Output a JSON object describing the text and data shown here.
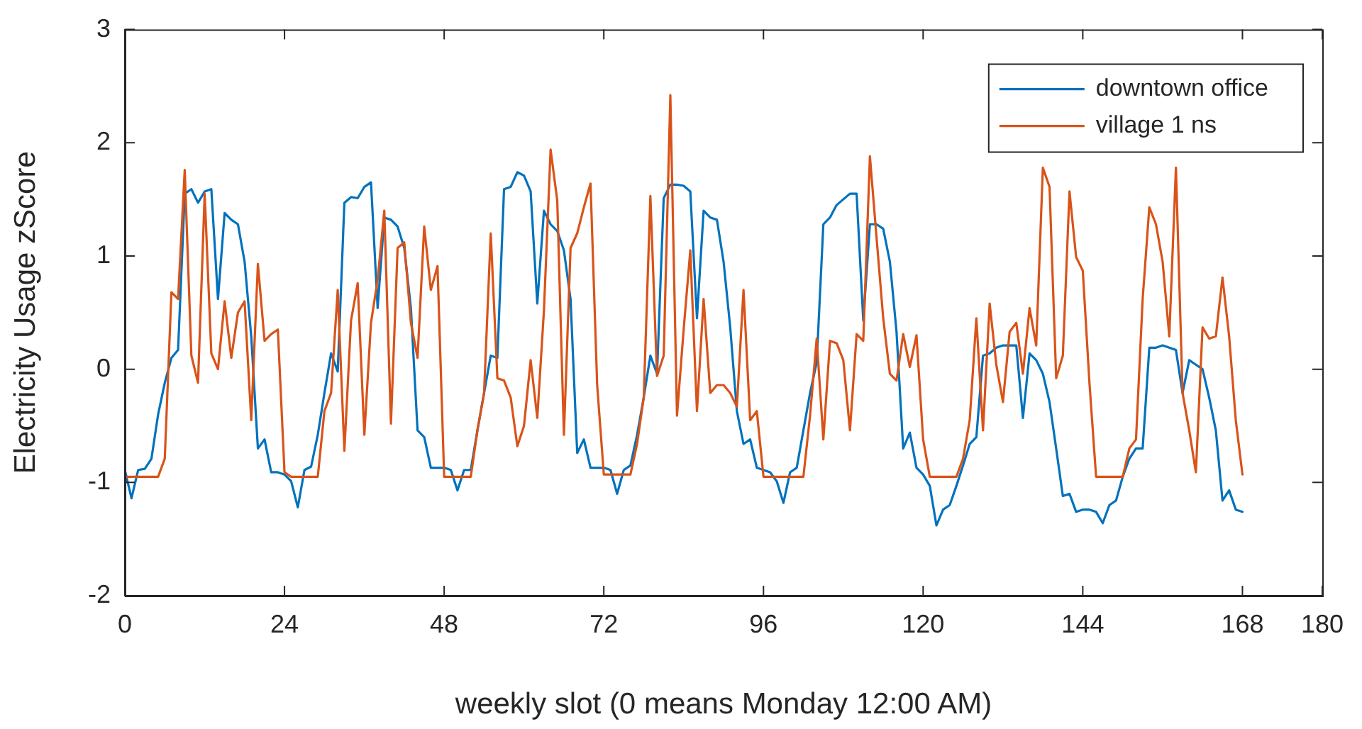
{
  "chart_data": {
    "type": "line",
    "xlabel": "weekly slot (0 means Monday 12:00 AM)",
    "ylabel": "Electricity Usage zScore",
    "x": [
      0,
      1,
      2,
      3,
      4,
      5,
      6,
      7,
      8,
      9,
      10,
      11,
      12,
      13,
      14,
      15,
      16,
      17,
      18,
      19,
      20,
      21,
      22,
      23,
      24,
      25,
      26,
      27,
      28,
      29,
      30,
      31,
      32,
      33,
      34,
      35,
      36,
      37,
      38,
      39,
      40,
      41,
      42,
      43,
      44,
      45,
      46,
      47,
      48,
      49,
      50,
      51,
      52,
      53,
      54,
      55,
      56,
      57,
      58,
      59,
      60,
      61,
      62,
      63,
      64,
      65,
      66,
      67,
      68,
      69,
      70,
      71,
      72,
      73,
      74,
      75,
      76,
      77,
      78,
      79,
      80,
      81,
      82,
      83,
      84,
      85,
      86,
      87,
      88,
      89,
      90,
      91,
      92,
      93,
      94,
      95,
      96,
      97,
      98,
      99,
      100,
      101,
      102,
      103,
      104,
      105,
      106,
      107,
      108,
      109,
      110,
      111,
      112,
      113,
      114,
      115,
      116,
      117,
      118,
      119,
      120,
      121,
      122,
      123,
      124,
      125,
      126,
      127,
      128,
      129,
      130,
      131,
      132,
      133,
      134,
      135,
      136,
      137,
      138,
      139,
      140,
      141,
      142,
      143,
      144,
      145,
      146,
      147,
      148,
      149,
      150,
      151,
      152,
      153,
      154,
      155,
      156,
      157,
      158,
      159,
      160,
      161,
      162,
      163,
      164,
      165,
      166,
      167,
      168
    ],
    "series": [
      {
        "name": "downtown office",
        "color": "#0072bd",
        "values": [
          -0.89,
          -1.14,
          -0.89,
          -0.88,
          -0.79,
          -0.4,
          -0.12,
          0.1,
          0.17,
          1.55,
          1.59,
          1.47,
          1.57,
          1.59,
          0.62,
          1.38,
          1.32,
          1.28,
          0.95,
          0.29,
          -0.7,
          -0.62,
          -0.91,
          -0.91,
          -0.93,
          -0.99,
          -1.22,
          -0.89,
          -0.86,
          -0.58,
          -0.21,
          0.14,
          -0.02,
          1.47,
          1.52,
          1.51,
          1.61,
          1.65,
          0.54,
          1.34,
          1.32,
          1.26,
          1.07,
          0.54,
          -0.54,
          -0.6,
          -0.87,
          -0.87,
          -0.87,
          -0.89,
          -1.07,
          -0.89,
          -0.89,
          -0.54,
          -0.21,
          0.12,
          0.1,
          1.59,
          1.61,
          1.74,
          1.71,
          1.57,
          0.58,
          1.4,
          1.28,
          1.22,
          1.05,
          0.62,
          -0.74,
          -0.62,
          -0.87,
          -0.87,
          -0.87,
          -0.89,
          -1.1,
          -0.89,
          -0.85,
          -0.58,
          -0.25,
          0.12,
          -0.04,
          1.51,
          1.63,
          1.63,
          1.62,
          1.57,
          0.45,
          1.4,
          1.34,
          1.32,
          0.95,
          0.37,
          -0.37,
          -0.66,
          -0.62,
          -0.87,
          -0.89,
          -0.91,
          -0.99,
          -1.18,
          -0.91,
          -0.87,
          -0.54,
          -0.21,
          0.06,
          1.28,
          1.34,
          1.45,
          1.5,
          1.55,
          1.55,
          0.43,
          1.28,
          1.28,
          1.24,
          0.95,
          0.33,
          -0.7,
          -0.56,
          -0.87,
          -0.93,
          -1.03,
          -1.38,
          -1.24,
          -1.2,
          -1.03,
          -0.85,
          -0.66,
          -0.6,
          0.12,
          0.14,
          0.19,
          0.21,
          0.21,
          0.21,
          -0.43,
          0.14,
          0.08,
          -0.04,
          -0.29,
          -0.7,
          -1.12,
          -1.1,
          -1.26,
          -1.24,
          -1.24,
          -1.26,
          -1.36,
          -1.2,
          -1.16,
          -0.95,
          -0.79,
          -0.7,
          -0.7,
          0.19,
          0.19,
          0.21,
          0.19,
          0.17,
          -0.21,
          0.08,
          0.04,
          0,
          -0.25,
          -0.54,
          -1.16,
          -1.07,
          -1.24,
          -1.26
        ]
      },
      {
        "name": "village 1 ns",
        "color": "#d95319",
        "values": [
          -0.95,
          -0.95,
          -0.95,
          -0.95,
          -0.95,
          -0.95,
          -0.79,
          0.68,
          0.62,
          1.76,
          0.12,
          -0.12,
          1.55,
          0.14,
          0,
          0.6,
          0.1,
          0.5,
          0.6,
          -0.45,
          0.93,
          0.25,
          0.31,
          0.35,
          -0.91,
          -0.95,
          -0.95,
          -0.95,
          -0.95,
          -0.95,
          -0.37,
          -0.21,
          0.7,
          -0.72,
          0.43,
          0.76,
          -0.58,
          0.41,
          0.79,
          1.4,
          -0.48,
          1.07,
          1.12,
          0.41,
          0.1,
          1.26,
          0.7,
          0.91,
          -0.95,
          -0.95,
          -0.95,
          -0.95,
          -0.95,
          -0.54,
          -0.21,
          1.2,
          -0.08,
          -0.1,
          -0.25,
          -0.68,
          -0.5,
          0.08,
          -0.43,
          0.52,
          1.94,
          1.49,
          -0.58,
          1.07,
          1.2,
          1.43,
          1.64,
          -0.14,
          -0.93,
          -0.93,
          -0.93,
          -0.93,
          -0.93,
          -0.66,
          -0.25,
          1.53,
          -0.06,
          0.12,
          2.42,
          -0.41,
          0.35,
          1.05,
          -0.37,
          0.62,
          -0.21,
          -0.14,
          -0.14,
          -0.21,
          -0.33,
          0.7,
          -0.45,
          -0.37,
          -0.95,
          -0.95,
          -0.95,
          -0.95,
          -0.95,
          -0.95,
          -0.95,
          -0.41,
          0.27,
          -0.62,
          0.25,
          0.23,
          0.08,
          -0.54,
          0.31,
          0.25,
          1.88,
          1.16,
          0.45,
          -0.04,
          -0.1,
          0.31,
          0.02,
          0.3,
          -0.62,
          -0.95,
          -0.95,
          -0.95,
          -0.95,
          -0.95,
          -0.79,
          -0.45,
          0.45,
          -0.54,
          0.58,
          0.04,
          -0.29,
          0.33,
          0.41,
          -0.04,
          0.54,
          0.21,
          1.78,
          1.61,
          -0.08,
          0.12,
          1.57,
          0.99,
          0.87,
          -0.12,
          -0.95,
          -0.95,
          -0.95,
          -0.95,
          -0.95,
          -0.7,
          -0.62,
          0.62,
          1.43,
          1.28,
          0.95,
          0.29,
          1.78,
          -0.21,
          -0.54,
          -0.91,
          0.37,
          0.27,
          0.29,
          0.81,
          0.29,
          -0.45,
          -0.93
        ]
      }
    ],
    "xlim": [
      0,
      180
    ],
    "xticks": [
      0,
      24,
      48,
      72,
      96,
      120,
      144,
      168,
      180
    ],
    "ylim": [
      -2,
      3
    ],
    "yticks": [
      -2,
      -1,
      0,
      1,
      2,
      3
    ],
    "grid": false,
    "legend": "top right",
    "marker": "none",
    "line_style": "solid"
  }
}
